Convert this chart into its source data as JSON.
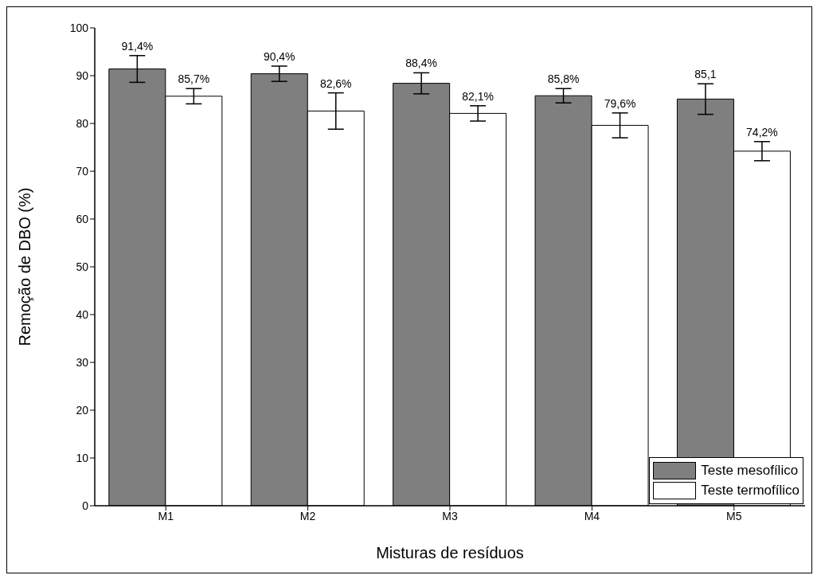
{
  "chart_data": {
    "type": "bar",
    "xlabel": "Misturas de resíduos",
    "ylabel": "Remoção de DBO (%)",
    "categories": [
      "M1",
      "M2",
      "M3",
      "M4",
      "M5"
    ],
    "series": [
      {
        "name": "Teste mesofílico",
        "color": "#7f7f7f",
        "values": [
          91.4,
          90.4,
          88.4,
          85.8,
          85.1
        ],
        "errors": [
          2.8,
          1.6,
          2.2,
          1.5,
          3.2
        ],
        "value_labels": [
          "91,4%",
          "90,4%",
          "88,4%",
          "85,8%",
          "85,1"
        ]
      },
      {
        "name": "Teste termofílico",
        "color": "#ffffff",
        "values": [
          85.7,
          82.6,
          82.1,
          79.6,
          74.2
        ],
        "errors": [
          1.6,
          3.8,
          1.6,
          2.6,
          2.0
        ],
        "value_labels": [
          "85,7%",
          "82,6%",
          "82,1%",
          "79,6%",
          "74,2%"
        ]
      }
    ],
    "ylim": [
      0,
      100
    ],
    "yticks": [
      0,
      10,
      20,
      30,
      40,
      50,
      60,
      70,
      80,
      90,
      100
    ],
    "grid": false,
    "legend": "bottom right"
  }
}
